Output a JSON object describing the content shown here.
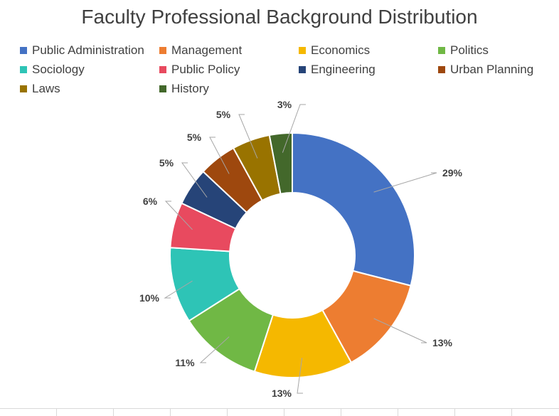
{
  "chart_data": {
    "type": "pie",
    "variant": "donut",
    "title": "Faculty Professional Background Distribution",
    "categories": [
      "Public Administration",
      "Management",
      "Economics",
      "Politics",
      "Sociology",
      "Public Policy",
      "Engineering",
      "Urban Planning",
      "Laws",
      "History"
    ],
    "values": [
      29,
      13,
      13,
      11,
      10,
      6,
      5,
      5,
      5,
      3
    ],
    "labels": [
      "29%",
      "13%",
      "13%",
      "11%",
      "10%",
      "6%",
      "5%",
      "5%",
      "5%",
      "3%"
    ],
    "colors": [
      "#4472C4",
      "#ED7D31",
      "#F5B800",
      "#70B845",
      "#2EC4B6",
      "#E84A5F",
      "#264478",
      "#9E480E",
      "#997300",
      "#43682B"
    ],
    "legend_position": "top"
  }
}
